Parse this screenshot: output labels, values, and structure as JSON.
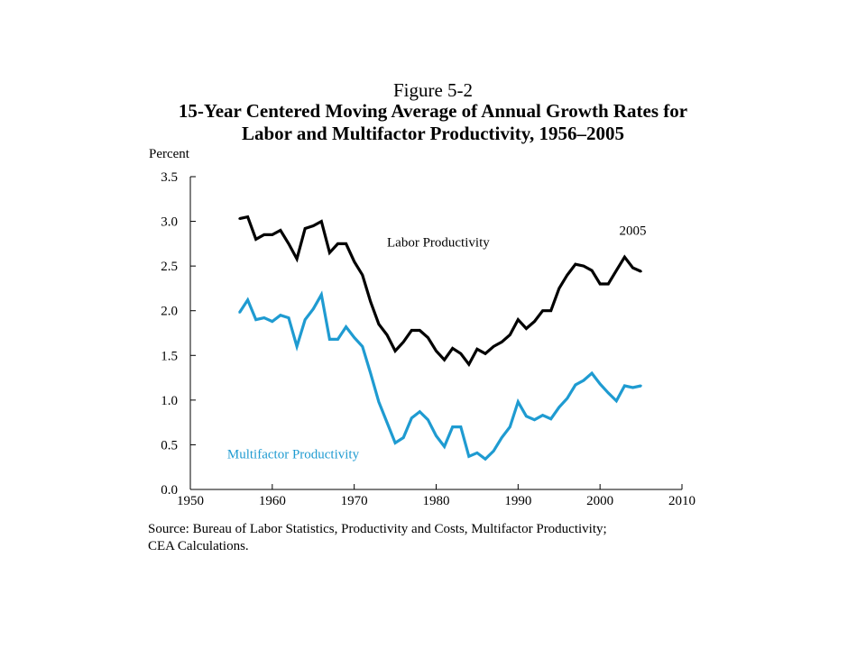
{
  "figure": {
    "label": "Figure 5-2",
    "title_line1": "15-Year Centered Moving Average of Annual Growth Rates for",
    "title_line2": "Labor and Multifactor Productivity, 1956–2005"
  },
  "source": {
    "line1": "Source: Bureau of Labor Statistics, Productivity and Costs, Multifactor Productivity;",
    "line2": "CEA Calculations."
  },
  "chart_data": {
    "type": "line",
    "title": "15-Year Centered Moving Average of Annual Growth Rates for Labor and Multifactor Productivity, 1956–2005",
    "xlabel": "",
    "ylabel": "Percent",
    "xlim": [
      1950,
      2010
    ],
    "ylim": [
      0.0,
      3.5
    ],
    "x_ticks": [
      1950,
      1960,
      1970,
      1980,
      1990,
      2000,
      2010
    ],
    "y_ticks": [
      "0.0",
      "0.5",
      "1.0",
      "1.5",
      "2.0",
      "2.5",
      "3.0",
      "3.5"
    ],
    "grid": false,
    "legend": "inline labels",
    "annotations": [
      {
        "text": "2005",
        "x": 2004,
        "y": 2.85
      }
    ],
    "x": [
      1956,
      1957,
      1958,
      1959,
      1960,
      1961,
      1962,
      1963,
      1964,
      1965,
      1966,
      1967,
      1968,
      1969,
      1970,
      1971,
      1972,
      1973,
      1974,
      1975,
      1976,
      1977,
      1978,
      1979,
      1980,
      1981,
      1982,
      1983,
      1984,
      1985,
      1986,
      1987,
      1988,
      1989,
      1990,
      1991,
      1992,
      1993,
      1994,
      1995,
      1996,
      1997,
      1998,
      1999,
      2000,
      2001,
      2002,
      2003,
      2004,
      2005
    ],
    "series": [
      {
        "name": "Labor Productivity",
        "color": "#000000",
        "label_pos": {
          "x": 1974,
          "y": 2.72
        },
        "values": [
          3.03,
          3.05,
          2.8,
          2.85,
          2.85,
          2.9,
          2.75,
          2.58,
          2.92,
          2.95,
          3.0,
          2.65,
          2.75,
          2.75,
          2.55,
          2.4,
          2.1,
          1.85,
          1.73,
          1.55,
          1.65,
          1.78,
          1.78,
          1.7,
          1.55,
          1.45,
          1.58,
          1.52,
          1.4,
          1.57,
          1.52,
          1.6,
          1.65,
          1.73,
          1.9,
          1.8,
          1.88,
          2.0,
          2.0,
          2.25,
          2.4,
          2.52,
          2.5,
          2.45,
          2.3,
          2.3,
          2.45,
          2.6,
          2.48,
          2.44
        ]
      },
      {
        "name": "Multifactor Productivity",
        "color": "#1f9bd1",
        "label_pos": {
          "x": 1954.5,
          "y": 0.35
        },
        "values": [
          1.98,
          2.12,
          1.9,
          1.92,
          1.88,
          1.95,
          1.92,
          1.6,
          1.9,
          2.02,
          2.18,
          1.68,
          1.68,
          1.82,
          1.7,
          1.6,
          1.3,
          0.98,
          0.75,
          0.52,
          0.58,
          0.8,
          0.87,
          0.78,
          0.6,
          0.48,
          0.7,
          0.7,
          0.37,
          0.41,
          0.34,
          0.43,
          0.58,
          0.7,
          0.98,
          0.82,
          0.78,
          0.83,
          0.79,
          0.92,
          1.02,
          1.17,
          1.22,
          1.3,
          1.18,
          1.08,
          0.99,
          1.16,
          1.14,
          1.16
        ]
      }
    ]
  }
}
